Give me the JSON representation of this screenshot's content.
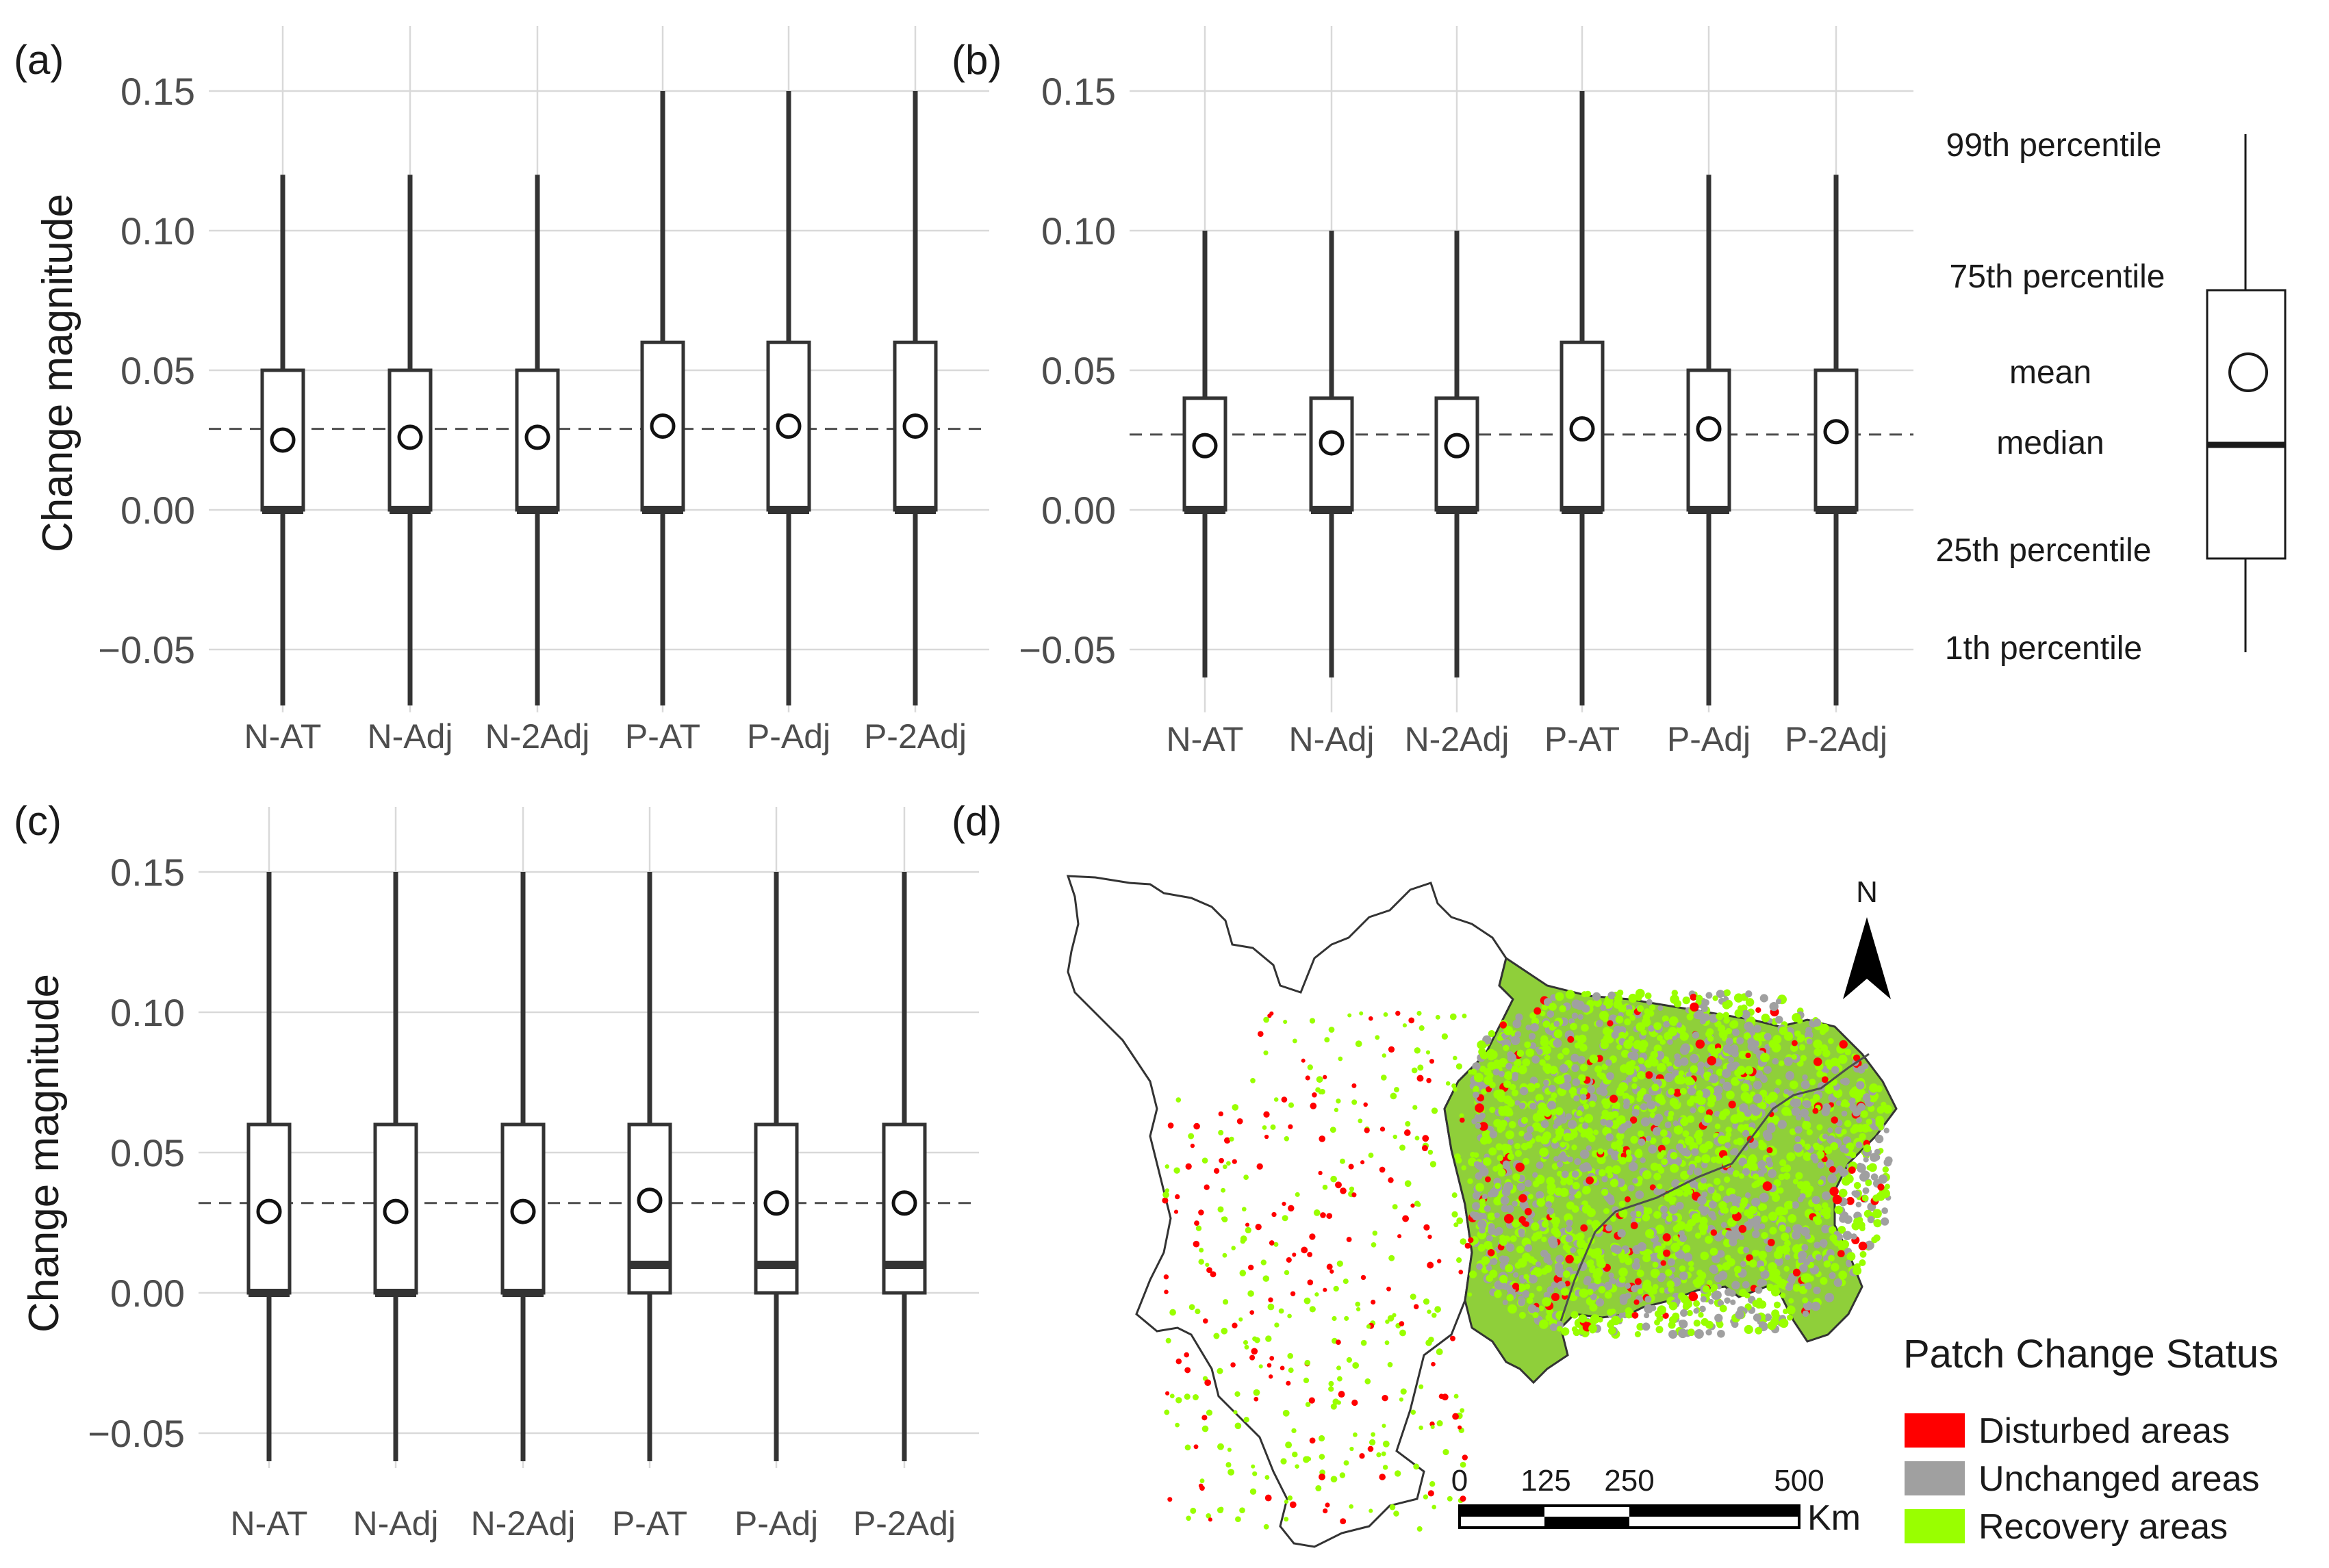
{
  "chart_data": [
    {
      "panel": "(a)",
      "type": "box",
      "ylabel": "Change magnitude",
      "ylim": [
        -0.07,
        0.15
      ],
      "yticks": [
        "0.15",
        "0.10",
        "0.05",
        "0.00",
        "−0.05"
      ],
      "ytick_values": [
        0.15,
        0.1,
        0.05,
        0.0,
        -0.05
      ],
      "categories": [
        "N-AT",
        "N-Adj",
        "N-2Adj",
        "P-AT",
        "P-Adj",
        "P-2Adj"
      ],
      "p1": [
        -0.07,
        -0.07,
        -0.07,
        -0.07,
        -0.07,
        -0.07
      ],
      "q1": [
        0.0,
        0.0,
        0.0,
        0.0,
        0.0,
        0.0
      ],
      "median": [
        0.0,
        0.0,
        0.0,
        0.0,
        0.0,
        0.0
      ],
      "q3": [
        0.05,
        0.05,
        0.05,
        0.06,
        0.06,
        0.06
      ],
      "p99": [
        0.12,
        0.12,
        0.12,
        0.15,
        0.15,
        0.15
      ],
      "mean": [
        0.025,
        0.026,
        0.026,
        0.03,
        0.03,
        0.03
      ],
      "reference_line": 0.029,
      "grid": true
    },
    {
      "panel": "(b)",
      "type": "box",
      "ylabel": "",
      "ylim": [
        -0.07,
        0.15
      ],
      "yticks": [
        "0.15",
        "0.10",
        "0.05",
        "0.00",
        "−0.05"
      ],
      "ytick_values": [
        0.15,
        0.1,
        0.05,
        0.0,
        -0.05
      ],
      "categories": [
        "N-AT",
        "N-Adj",
        "N-2Adj",
        "P-AT",
        "P-Adj",
        "P-2Adj"
      ],
      "p1": [
        -0.06,
        -0.06,
        -0.06,
        -0.07,
        -0.07,
        -0.07
      ],
      "q1": [
        0.0,
        0.0,
        0.0,
        0.0,
        0.0,
        0.0
      ],
      "median": [
        0.0,
        0.0,
        0.0,
        0.0,
        0.0,
        0.0
      ],
      "q3": [
        0.04,
        0.04,
        0.04,
        0.06,
        0.05,
        0.05
      ],
      "p99": [
        0.1,
        0.1,
        0.1,
        0.15,
        0.12,
        0.12
      ],
      "mean": [
        0.023,
        0.024,
        0.023,
        0.029,
        0.029,
        0.028
      ],
      "reference_line": 0.027,
      "grid": true
    },
    {
      "panel": "(c)",
      "type": "box",
      "ylabel": "Change magnitude",
      "ylim": [
        -0.06,
        0.15
      ],
      "yticks": [
        "0.15",
        "0.10",
        "0.05",
        "0.00",
        "−0.05"
      ],
      "ytick_values": [
        0.15,
        0.1,
        0.05,
        0.0,
        -0.05
      ],
      "categories": [
        "N-AT",
        "N-Adj",
        "N-2Adj",
        "P-AT",
        "P-Adj",
        "P-2Adj"
      ],
      "p1": [
        -0.06,
        -0.06,
        -0.06,
        -0.06,
        -0.06,
        -0.06
      ],
      "q1": [
        0.0,
        0.0,
        0.0,
        0.0,
        0.0,
        0.0
      ],
      "median": [
        0.0,
        0.0,
        0.0,
        0.01,
        0.01,
        0.01
      ],
      "q3": [
        0.06,
        0.06,
        0.06,
        0.06,
        0.06,
        0.06
      ],
      "p99": [
        0.15,
        0.15,
        0.15,
        0.15,
        0.15,
        0.15
      ],
      "mean": [
        0.029,
        0.029,
        0.029,
        0.033,
        0.032,
        0.032
      ],
      "reference_line": 0.032,
      "grid": true
    }
  ],
  "boxplot_key": {
    "labels": {
      "p99": "99th percentile",
      "q3": "75th percentile",
      "mean": "mean",
      "median": "median",
      "q1": "25th percentile",
      "p1": "1th percentile"
    }
  },
  "map_panel": {
    "label": "(d)",
    "north_label": "N",
    "legend_title": "Patch Change Status",
    "legend_items": [
      {
        "label": "Disturbed areas",
        "color": "#ff0000"
      },
      {
        "label": "Unchanged areas",
        "color": "#a0a0a0"
      },
      {
        "label": "Recovery areas",
        "color": "#99ff00"
      }
    ],
    "scale_labels": [
      "0",
      "125",
      "250",
      "500"
    ],
    "scale_unit": "Km"
  }
}
